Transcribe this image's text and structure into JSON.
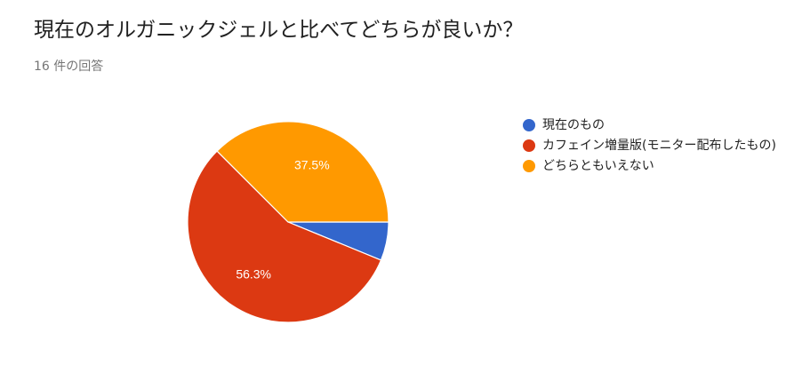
{
  "title": "現在のオルガニックジェルと比べてどちらが良いか？",
  "response_count": "16 件の回答",
  "chart_data": {
    "type": "pie",
    "title": "現在のオルガニックジェルと比べてどちらが良いか？",
    "categories": [
      "現在のもの",
      "カフェイン増量版(モニター配布したもの)",
      "どちらともいえない"
    ],
    "values": [
      6.2,
      56.3,
      37.5
    ],
    "labels": [
      "",
      "56.3%",
      "37.5%"
    ],
    "colors": [
      "#3366cc",
      "#dc3912",
      "#ff9900"
    ],
    "legend_position": "right"
  }
}
